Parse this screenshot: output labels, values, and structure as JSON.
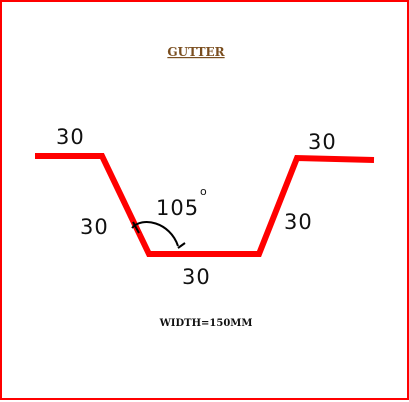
{
  "title": "GUTTER",
  "dimensions": {
    "left_flange": "30",
    "left_slope": "30",
    "bottom": "30",
    "right_slope": "30",
    "right_flange": "30"
  },
  "angle": {
    "value": "105",
    "unit_symbol": "o"
  },
  "width_note": "WIDTH=150MM",
  "colors": {
    "frame": "#ff0000",
    "profile": "#ff0000",
    "title": "#7a4e1f",
    "text": "#111111"
  }
}
